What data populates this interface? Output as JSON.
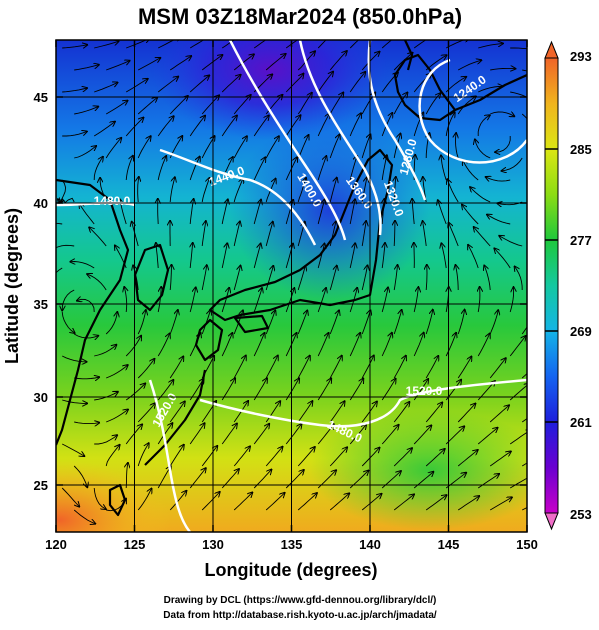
{
  "title": "MSM 03Z18Mar2024 (850.0hPa)",
  "xlabel": "Longitude (degrees)",
  "ylabel": "Latitude  (degrees)",
  "x_ticks": [
    "120",
    "125",
    "130",
    "135",
    "140",
    "145",
    "150"
  ],
  "y_ticks": [
    "25",
    "30",
    "35",
    "40",
    "45"
  ],
  "colorbar": {
    "ticks": [
      "293",
      "285",
      "277",
      "269",
      "261",
      "253"
    ],
    "min": 253,
    "max": 293,
    "colors": [
      "#c800c8",
      "#6a00d0",
      "#1e1edc",
      "#1464f0",
      "#14b4e6",
      "#14c8a0",
      "#1ec83c",
      "#8cdc14",
      "#dce614",
      "#f0b41e",
      "#f06428"
    ]
  },
  "contour_labels": [
    "1240.0",
    "1280.0",
    "1320.0",
    "1360.0",
    "1400.0",
    "1440.0",
    "1480.0",
    "1480.0",
    "1520.0",
    "1520.0"
  ],
  "credits": [
    "Drawing by DCL (https://www.gfd-dennou.org/library/dcl/)",
    "Data from http://database.rish.kyoto-u.ac.jp/arch/jmadata/"
  ]
}
